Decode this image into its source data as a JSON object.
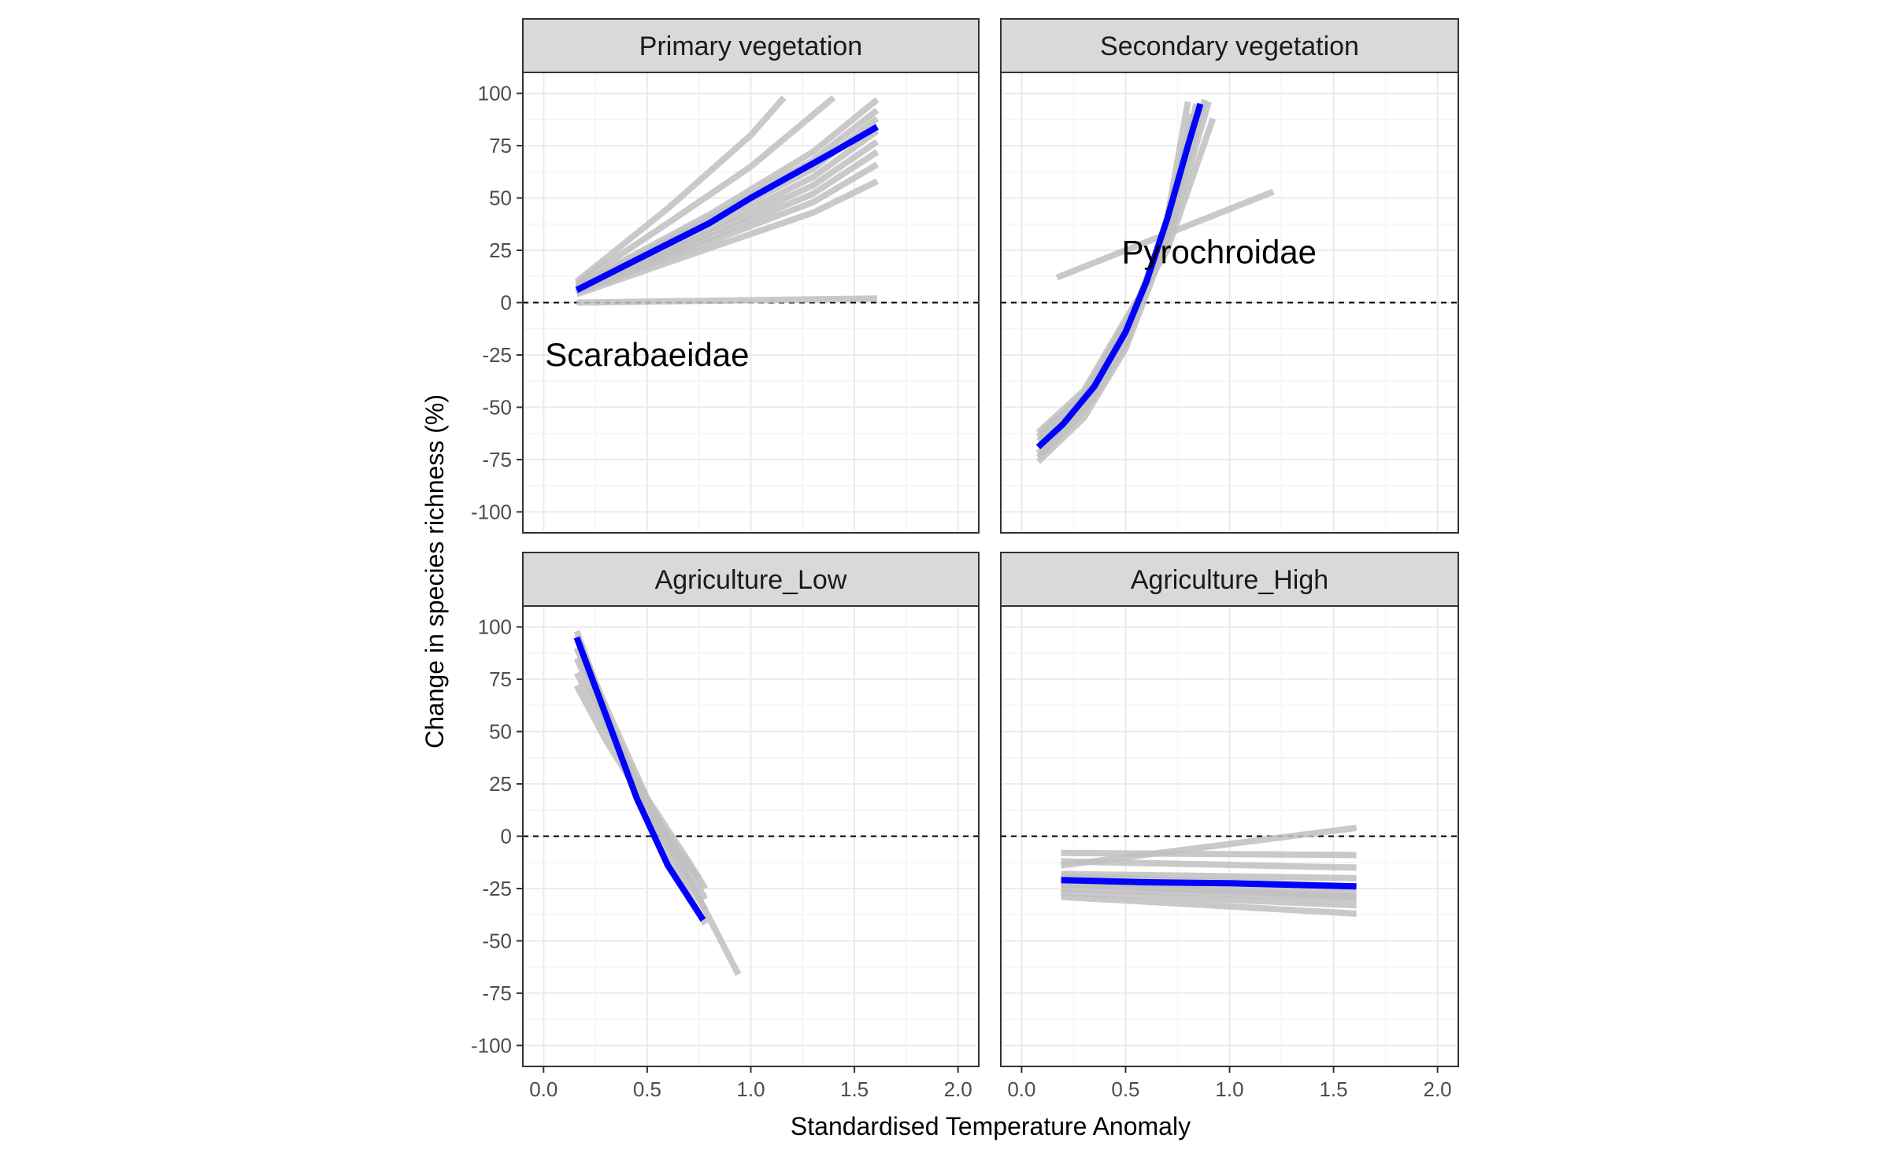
{
  "chart_data": {
    "type": "line",
    "layout": "facet-grid-2x2",
    "xlabel": "Standardised Temperature Anomaly",
    "ylabel": "Change in species richness (%)",
    "xlim": [
      -0.1,
      2.1
    ],
    "ylim": [
      -110,
      110
    ],
    "x_ticks": [
      0.0,
      0.5,
      1.0,
      1.5,
      2.0
    ],
    "x_tick_labels": [
      "0.0",
      "0.5",
      "1.0",
      "1.5",
      "2.0"
    ],
    "y_ticks": [
      100,
      75,
      50,
      25,
      0,
      -25,
      -50,
      -75,
      -100
    ],
    "y_tick_labels": [
      "100",
      "75",
      "50",
      "25",
      "0",
      "-25",
      "-50",
      "-75",
      "-100"
    ],
    "reference_line": {
      "y": 0,
      "style": "dashed",
      "color": "#000000"
    },
    "grid": true,
    "colors": {
      "mean_line": "#0000ff",
      "replicate_lines": "#bfbfbf",
      "strip_fill": "#d9d9d9",
      "grid": "#ebebeb",
      "panel_border": "#333333"
    },
    "panels": [
      {
        "title": "Primary vegetation",
        "annotation": {
          "text": "Scarabaeidae",
          "x": 0.5,
          "y": -25
        },
        "mean_line": {
          "x": [
            0.16,
            0.4,
            0.6,
            0.8,
            1.0,
            1.2,
            1.4,
            1.61
          ],
          "y": [
            6,
            18,
            28,
            38,
            50,
            61,
            72,
            84
          ]
        },
        "replicate_lines": [
          {
            "x": [
              0.16,
              0.6,
              1.0,
              1.16
            ],
            "y": [
              10,
              45,
              80,
              98
            ]
          },
          {
            "x": [
              0.16,
              0.6,
              1.0,
              1.4
            ],
            "y": [
              9,
              38,
              65,
              98
            ]
          },
          {
            "x": [
              0.16,
              0.8,
              1.3,
              1.61
            ],
            "y": [
              8,
              42,
              72,
              97
            ]
          },
          {
            "x": [
              0.16,
              0.8,
              1.3,
              1.61
            ],
            "y": [
              7,
              40,
              68,
              92
            ]
          },
          {
            "x": [
              0.16,
              0.8,
              1.3,
              1.61
            ],
            "y": [
              7,
              38,
              64,
              88
            ]
          },
          {
            "x": [
              0.16,
              0.8,
              1.3,
              1.61
            ],
            "y": [
              6,
              35,
              60,
              82
            ]
          },
          {
            "x": [
              0.16,
              0.8,
              1.3,
              1.61
            ],
            "y": [
              6,
              33,
              56,
              77
            ]
          },
          {
            "x": [
              0.16,
              0.8,
              1.3,
              1.61
            ],
            "y": [
              5,
              31,
              52,
              72
            ]
          },
          {
            "x": [
              0.16,
              0.8,
              1.3,
              1.61
            ],
            "y": [
              5,
              29,
              48,
              66
            ]
          },
          {
            "x": [
              0.16,
              0.8,
              1.3,
              1.61
            ],
            "y": [
              4,
              26,
              43,
              58
            ]
          },
          {
            "x": [
              0.16,
              1.61
            ],
            "y": [
              0,
              2
            ]
          }
        ]
      },
      {
        "title": "Secondary vegetation",
        "annotation": {
          "text": "Pyrochroidae",
          "x": 0.95,
          "y": 24
        },
        "mean_line": {
          "x": [
            0.08,
            0.2,
            0.35,
            0.5,
            0.6,
            0.7,
            0.8,
            0.86
          ],
          "y": [
            -69,
            -58,
            -40,
            -14,
            10,
            40,
            75,
            95
          ]
        },
        "replicate_lines": [
          {
            "x": [
              0.08,
              0.3,
              0.5,
              0.7,
              0.84
            ],
            "y": [
              -76,
              -55,
              -22,
              30,
              95
            ]
          },
          {
            "x": [
              0.08,
              0.3,
              0.5,
              0.7,
              0.82
            ],
            "y": [
              -72,
              -50,
              -15,
              38,
              90
            ]
          },
          {
            "x": [
              0.08,
              0.3,
              0.5,
              0.7,
              0.88
            ],
            "y": [
              -66,
              -47,
              -12,
              32,
              97
            ]
          },
          {
            "x": [
              0.08,
              0.3,
              0.5,
              0.7,
              0.9
            ],
            "y": [
              -64,
              -44,
              -10,
              28,
              96
            ]
          },
          {
            "x": [
              0.08,
              0.3,
              0.5,
              0.7,
              0.92
            ],
            "y": [
              -62,
              -42,
              -8,
              25,
              88
            ]
          },
          {
            "x": [
              0.08,
              0.3,
              0.5,
              0.7,
              0.8
            ],
            "y": [
              -74,
              -52,
              -20,
              40,
              96
            ]
          },
          {
            "x": [
              0.17,
              1.21
            ],
            "y": [
              12,
              53
            ]
          }
        ]
      },
      {
        "title": "Agriculture_Low",
        "annotation": null,
        "mean_line": {
          "x": [
            0.16,
            0.3,
            0.45,
            0.6,
            0.77
          ],
          "y": [
            95,
            58,
            18,
            -14,
            -40
          ]
        },
        "replicate_lines": [
          {
            "x": [
              0.16,
              0.3,
              0.5,
              0.7,
              0.94
            ],
            "y": [
              95,
              62,
              18,
              -20,
              -66
            ]
          },
          {
            "x": [
              0.16,
              0.3,
              0.5,
              0.7,
              0.78
            ],
            "y": [
              98,
              60,
              12,
              -28,
              -42
            ]
          },
          {
            "x": [
              0.16,
              0.3,
              0.5,
              0.7,
              0.78
            ],
            "y": [
              90,
              58,
              14,
              -22,
              -35
            ]
          },
          {
            "x": [
              0.16,
              0.3,
              0.5,
              0.7,
              0.78
            ],
            "y": [
              85,
              55,
              16,
              -16,
              -30
            ]
          },
          {
            "x": [
              0.16,
              0.3,
              0.5,
              0.7,
              0.78
            ],
            "y": [
              78,
              52,
              18,
              -12,
              -25
            ]
          },
          {
            "x": [
              0.16,
              0.3,
              0.5,
              0.7,
              0.75
            ],
            "y": [
              72,
              46,
              14,
              -14,
              -20
            ]
          }
        ]
      },
      {
        "title": "Agriculture_High",
        "annotation": null,
        "mean_line": {
          "x": [
            0.19,
            0.6,
            1.0,
            1.61
          ],
          "y": [
            -21,
            -22,
            -22.5,
            -24
          ]
        },
        "replicate_lines": [
          {
            "x": [
              0.19,
              1.61
            ],
            "y": [
              -14,
              4
            ]
          },
          {
            "x": [
              0.19,
              1.61
            ],
            "y": [
              -8,
              -9
            ]
          },
          {
            "x": [
              0.19,
              1.61
            ],
            "y": [
              -12,
              -15
            ]
          },
          {
            "x": [
              0.19,
              1.61
            ],
            "y": [
              -18,
              -20
            ]
          },
          {
            "x": [
              0.19,
              1.61
            ],
            "y": [
              -22,
              -27
            ]
          },
          {
            "x": [
              0.19,
              1.61
            ],
            "y": [
              -25,
              -30
            ]
          },
          {
            "x": [
              0.19,
              1.61
            ],
            "y": [
              -27,
              -33
            ]
          },
          {
            "x": [
              0.19,
              1.61
            ],
            "y": [
              -29,
              -37
            ]
          },
          {
            "x": [
              0.19,
              1.61
            ],
            "y": [
              -19,
              -24
            ]
          },
          {
            "x": [
              0.19,
              1.61
            ],
            "y": [
              -23,
              -29
            ]
          }
        ]
      }
    ]
  }
}
